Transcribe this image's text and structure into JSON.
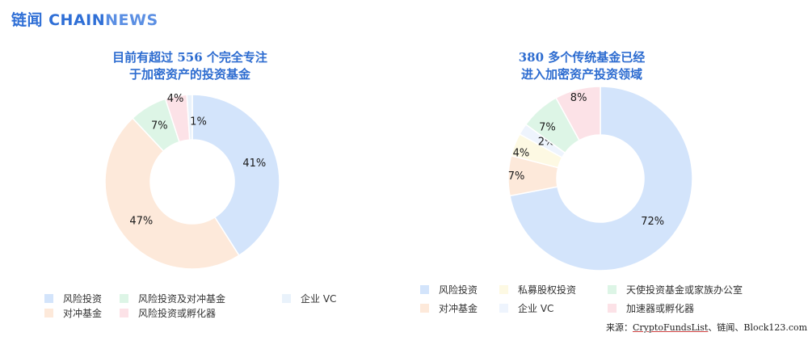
{
  "logo": {
    "part1": "链闻 CHAIN",
    "part2": "NEWS"
  },
  "chart_data": [
    {
      "type": "pie",
      "title": "目前有超过 556 个完全专注于加密资产的投资基金",
      "title_line1": "目前有超过 556 个完全专注",
      "title_line2": "于加密资产的投资基金",
      "categories": [
        "风险投资",
        "对冲基金",
        "风险投资及对冲基金",
        "风险投资或孵化器",
        "企业 VC"
      ],
      "values": [
        41,
        47,
        7,
        4,
        1
      ],
      "value_labels": [
        "41%",
        "47%",
        "7%",
        "4%",
        "1%"
      ],
      "colors": [
        "#d3e4fb",
        "#fde9da",
        "#ddf5e6",
        "#fce2e7",
        "#e9f2fb"
      ],
      "legend": {
        "row1": [
          "风险投资",
          "风险投资及对冲基金",
          "企业 VC"
        ],
        "row2": [
          "对冲基金",
          "风险投资或孵化器"
        ]
      }
    },
    {
      "type": "pie",
      "title": "380 多个传统基金已经进入加密资产投资领域",
      "title_line1": "380 多个传统基金已经",
      "title_line2": "进入加密资产投资领域",
      "categories": [
        "风险投资",
        "对冲基金",
        "私募股权投资",
        "企业 VC",
        "天使投资基金或家族办公室",
        "加速器或孵化器"
      ],
      "values": [
        72,
        7,
        4,
        2,
        7,
        8
      ],
      "value_labels": [
        "72%",
        "7%",
        "4%",
        "2%",
        "7%",
        "8%"
      ],
      "colors": [
        "#d3e4fb",
        "#fde9da",
        "#fdf9e3",
        "#eef4fd",
        "#ddf5e6",
        "#fce2e7"
      ],
      "legend": {
        "row1": [
          "风险投资",
          "私募股权投资",
          "天使投资基金或家族办公室"
        ],
        "row2": [
          "对冲基金",
          "企业 VC",
          "加速器或孵化器"
        ]
      }
    }
  ],
  "source": {
    "prefix": "来源：",
    "link": "CryptoFundsList",
    "rest": "、链闻、Block123.com"
  }
}
